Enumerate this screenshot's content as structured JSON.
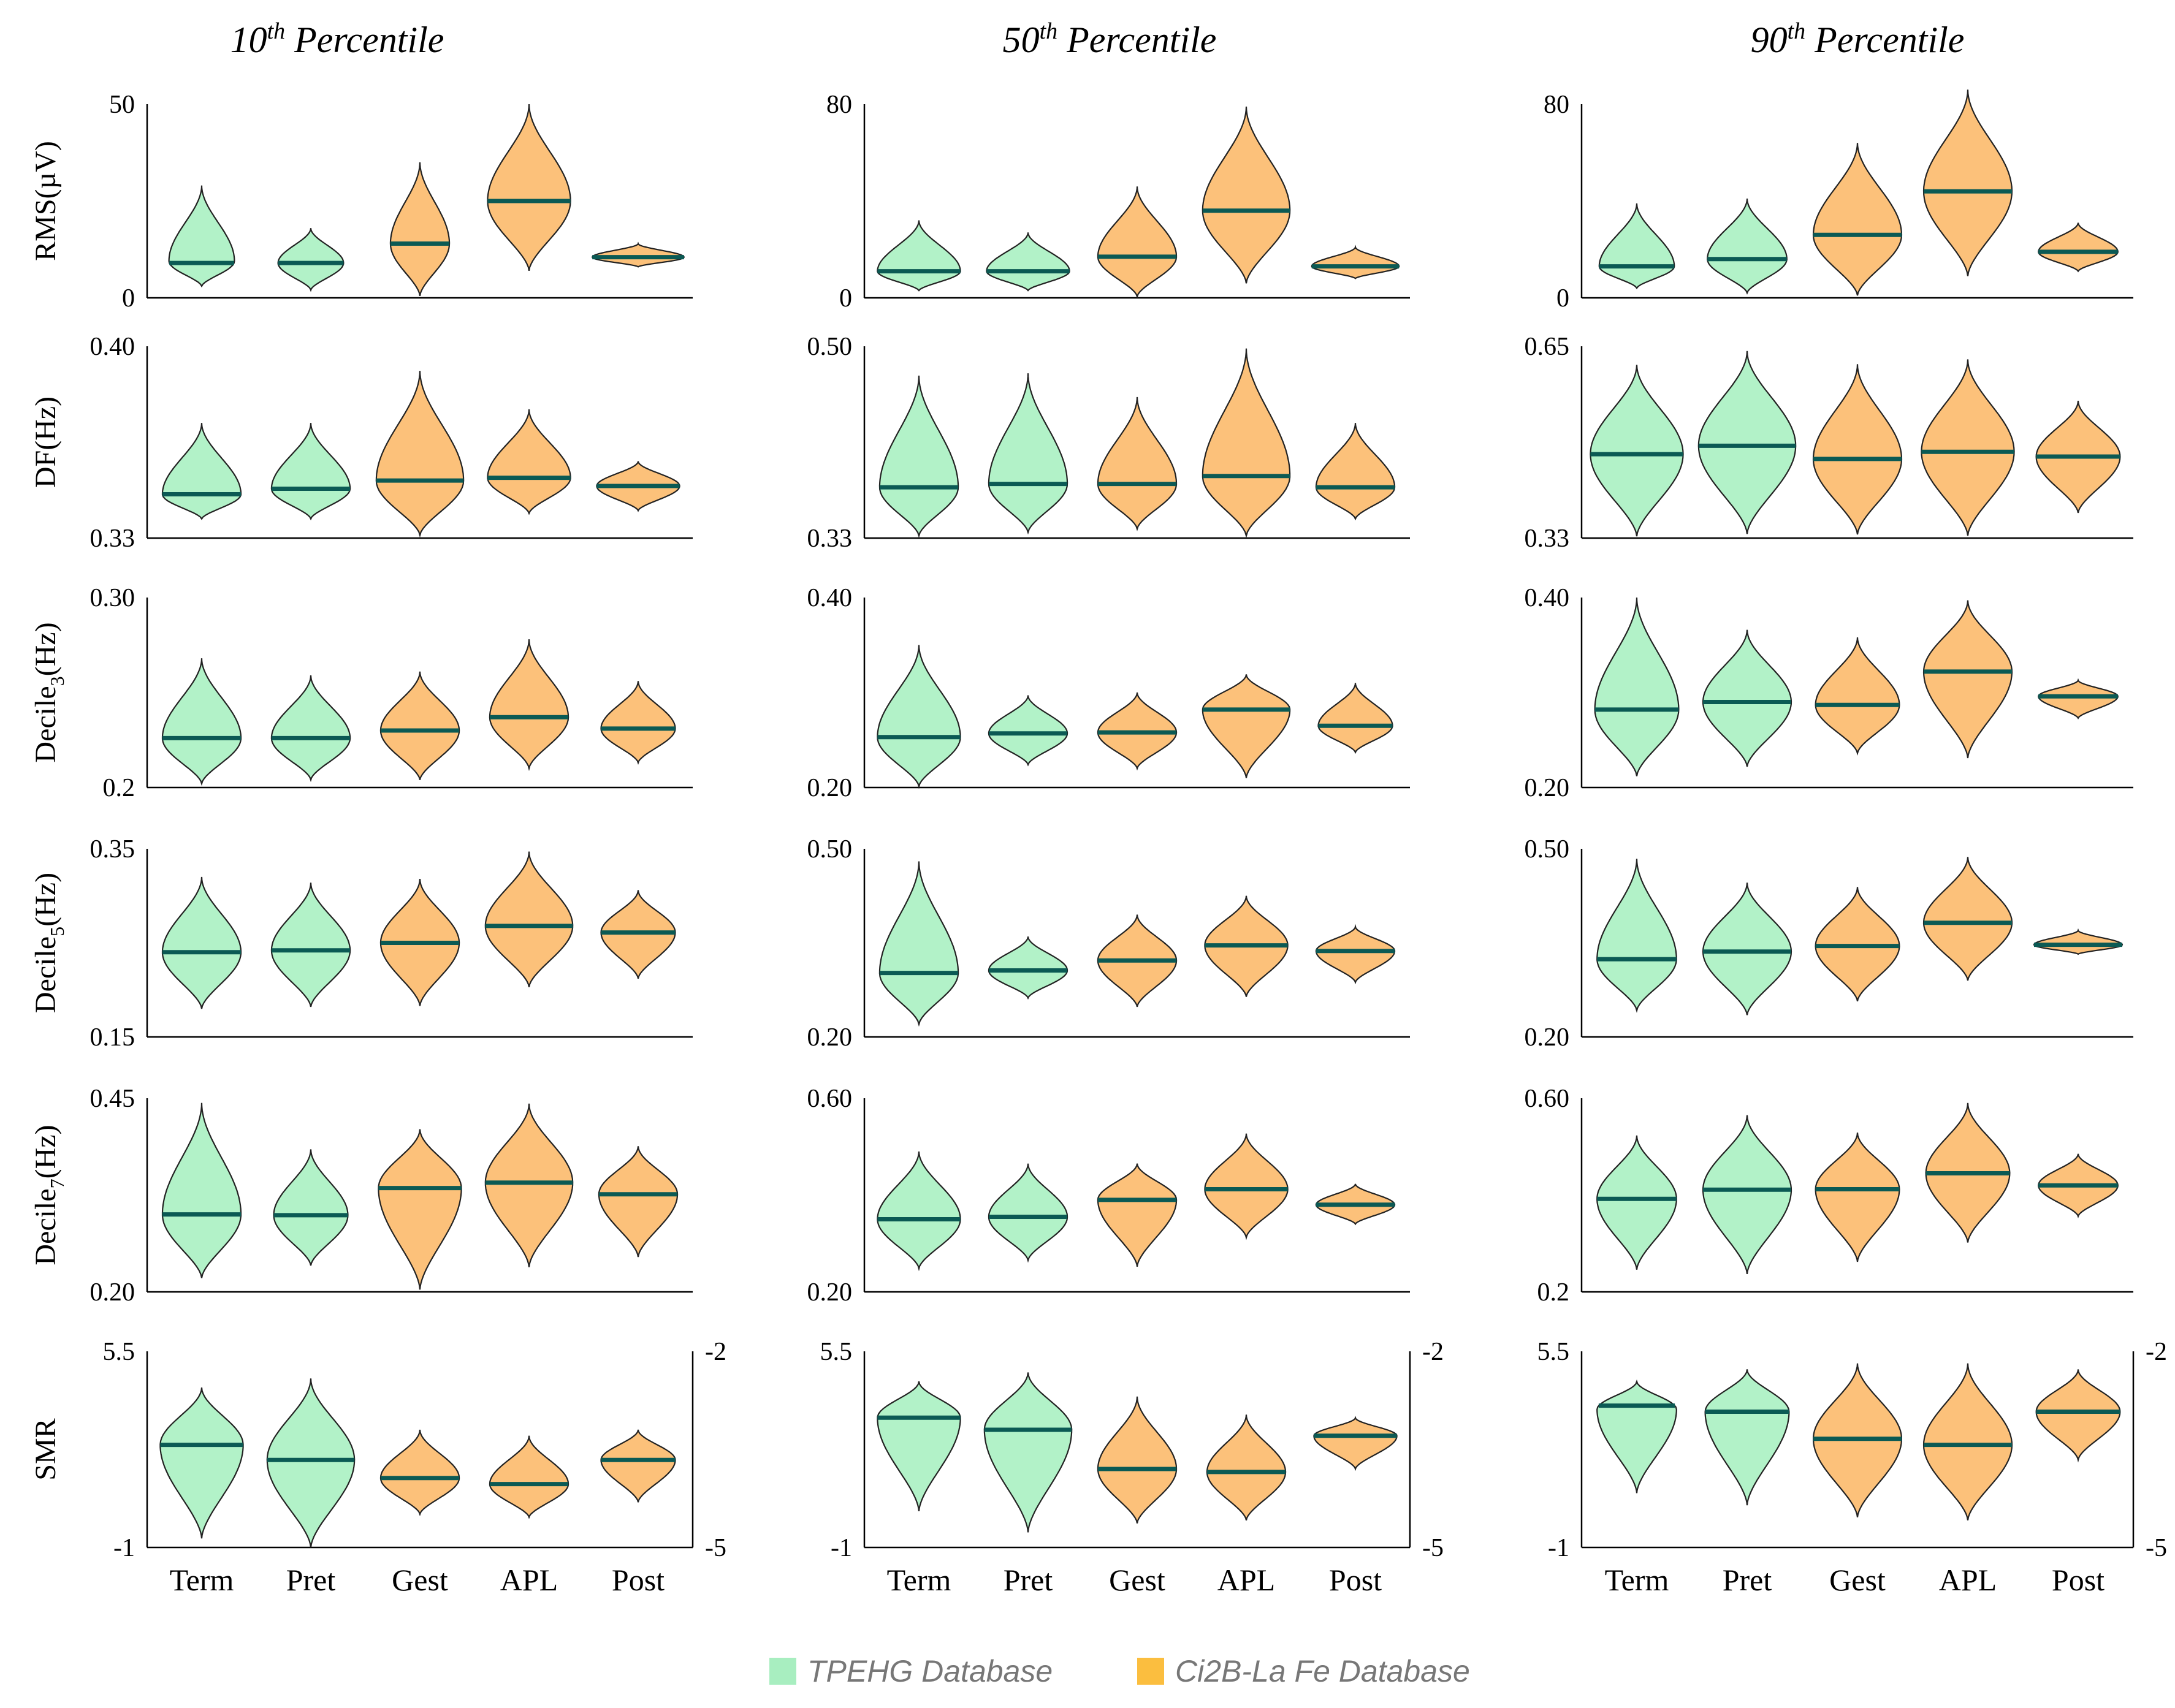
{
  "colors": {
    "tpehg": "#b2f2c8",
    "ci2b": "#fcc17a",
    "median": "#0b5a54",
    "legend_tpehg": "#a8eec0",
    "legend_ci2b": "#fbbe3f"
  },
  "chart_data": {
    "type": "violin",
    "categories": [
      "Term",
      "Pret",
      "Gest",
      "APL",
      "Post"
    ],
    "category_database": [
      "tpehg",
      "tpehg",
      "ci2b",
      "ci2b",
      "ci2b"
    ],
    "legend": [
      {
        "key": "tpehg",
        "label": "TPEHG Database"
      },
      {
        "key": "ci2b",
        "label": "Ci2B-La Fe Database"
      }
    ],
    "columns": [
      {
        "base": "10",
        "sup": "th",
        "rest": " Percentile"
      },
      {
        "base": "50",
        "sup": "th",
        "rest": " Percentile"
      },
      {
        "base": "90",
        "sup": "th",
        "rest": " Percentile"
      }
    ],
    "rows": [
      {
        "label": "RMS(µV)",
        "label_main": "RMS(",
        "label_sub": "",
        "label_end": "µV)"
      },
      {
        "label": "DF(Hz)",
        "label_main": "DF(Hz)",
        "label_sub": "",
        "label_end": ""
      },
      {
        "label": "Decile3(Hz)",
        "label_main": "Decile",
        "label_sub": "3",
        "label_end": "(Hz)"
      },
      {
        "label": "Decile5(Hz)",
        "label_main": "Decile",
        "label_sub": "5",
        "label_end": "(Hz)"
      },
      {
        "label": "Decile7(Hz)",
        "label_main": "Decile",
        "label_sub": "7",
        "label_end": "(Hz)"
      },
      {
        "label": "SMR",
        "label_main": "SMR",
        "label_sub": "",
        "label_end": ""
      }
    ],
    "panels": [
      [
        {
          "ylim": [
            0,
            50
          ],
          "ticks": [
            "50",
            "0"
          ],
          "violins": [
            {
              "min": 3,
              "max": 29,
              "median": 9,
              "width": 0.3
            },
            {
              "min": 2,
              "max": 18,
              "median": 9,
              "width": 0.3
            },
            {
              "min": 0.5,
              "max": 35,
              "median": 14,
              "width": 0.27
            },
            {
              "min": 7,
              "max": 50,
              "median": 25,
              "width": 0.38
            },
            {
              "min": 8,
              "max": 14,
              "median": 10.5,
              "width": 0.42
            }
          ]
        },
        {
          "ylim": [
            0.33,
            0.4
          ],
          "ticks": [
            "0.40",
            "0.33"
          ],
          "violins": [
            {
              "min": 0.337,
              "max": 0.372,
              "median": 0.346,
              "width": 0.36
            },
            {
              "min": 0.337,
              "max": 0.372,
              "median": 0.348,
              "width": 0.36
            },
            {
              "min": 0.331,
              "max": 0.391,
              "median": 0.351,
              "width": 0.4
            },
            {
              "min": 0.339,
              "max": 0.377,
              "median": 0.352,
              "width": 0.38
            },
            {
              "min": 0.34,
              "max": 0.358,
              "median": 0.349,
              "width": 0.38
            }
          ]
        },
        {
          "ylim": [
            0.2,
            0.3
          ],
          "ticks": [
            "0.30",
            "0.2"
          ],
          "violins": [
            {
              "min": 0.202,
              "max": 0.268,
              "median": 0.226,
              "width": 0.36
            },
            {
              "min": 0.204,
              "max": 0.259,
              "median": 0.226,
              "width": 0.36
            },
            {
              "min": 0.204,
              "max": 0.261,
              "median": 0.23,
              "width": 0.36
            },
            {
              "min": 0.21,
              "max": 0.278,
              "median": 0.237,
              "width": 0.36
            },
            {
              "min": 0.213,
              "max": 0.256,
              "median": 0.231,
              "width": 0.34
            }
          ]
        },
        {
          "ylim": [
            0.15,
            0.35
          ],
          "ticks": [
            "0.35",
            "0.15"
          ],
          "violins": [
            {
              "min": 0.18,
              "max": 0.32,
              "median": 0.24,
              "width": 0.36
            },
            {
              "min": 0.182,
              "max": 0.314,
              "median": 0.242,
              "width": 0.36
            },
            {
              "min": 0.183,
              "max": 0.318,
              "median": 0.25,
              "width": 0.36
            },
            {
              "min": 0.203,
              "max": 0.347,
              "median": 0.268,
              "width": 0.4
            },
            {
              "min": 0.212,
              "max": 0.306,
              "median": 0.261,
              "width": 0.34
            }
          ]
        },
        {
          "ylim": [
            0.2,
            0.45
          ],
          "ticks": [
            "0.45",
            "0.20"
          ],
          "violins": [
            {
              "min": 0.218,
              "max": 0.444,
              "median": 0.3,
              "width": 0.36
            },
            {
              "min": 0.234,
              "max": 0.384,
              "median": 0.299,
              "width": 0.34
            },
            {
              "min": 0.203,
              "max": 0.41,
              "median": 0.334,
              "width": 0.38
            },
            {
              "min": 0.232,
              "max": 0.443,
              "median": 0.341,
              "width": 0.4
            },
            {
              "min": 0.245,
              "max": 0.388,
              "median": 0.326,
              "width": 0.36
            }
          ]
        },
        {
          "ylim": [
            -1,
            5.5
          ],
          "ticks": [
            "5.5",
            "-1"
          ],
          "ylim_right": [
            -5,
            -2
          ],
          "ticks_right": [
            "-2",
            "-5"
          ],
          "violins": [
            {
              "min": -0.7,
              "max": 4.3,
              "median": 2.4,
              "width": 0.38
            },
            {
              "min": -1.0,
              "max": 4.6,
              "median": 1.9,
              "width": 0.4
            },
            {
              "min": 0.1,
              "max": 2.9,
              "median": 1.3,
              "width": 0.36
            },
            {
              "min": 0.0,
              "max": 2.7,
              "median": 1.1,
              "width": 0.36
            },
            {
              "min": 0.5,
              "max": 2.9,
              "median": 1.9,
              "width": 0.34
            }
          ]
        }
      ],
      [
        {
          "ylim": [
            0,
            80
          ],
          "ticks": [
            "80",
            "0"
          ],
          "violins": [
            {
              "min": 3,
              "max": 32,
              "median": 11,
              "width": 0.38
            },
            {
              "min": 3,
              "max": 27,
              "median": 11,
              "width": 0.38
            },
            {
              "min": 0.5,
              "max": 46,
              "median": 17,
              "width": 0.36
            },
            {
              "min": 6,
              "max": 79,
              "median": 36,
              "width": 0.4
            },
            {
              "min": 8,
              "max": 21,
              "median": 13,
              "width": 0.4
            }
          ]
        },
        {
          "ylim": [
            0.33,
            0.5
          ],
          "ticks": [
            "0.50",
            "0.33"
          ],
          "violins": [
            {
              "min": 0.332,
              "max": 0.474,
              "median": 0.375,
              "width": 0.36
            },
            {
              "min": 0.335,
              "max": 0.476,
              "median": 0.378,
              "width": 0.36
            },
            {
              "min": 0.338,
              "max": 0.455,
              "median": 0.378,
              "width": 0.36
            },
            {
              "min": 0.332,
              "max": 0.498,
              "median": 0.385,
              "width": 0.4
            },
            {
              "min": 0.347,
              "max": 0.432,
              "median": 0.375,
              "width": 0.36
            }
          ]
        },
        {
          "ylim": [
            0.2,
            0.4
          ],
          "ticks": [
            "0.40",
            "0.20"
          ],
          "violins": [
            {
              "min": 0.201,
              "max": 0.35,
              "median": 0.253,
              "width": 0.38
            },
            {
              "min": 0.224,
              "max": 0.297,
              "median": 0.257,
              "width": 0.36
            },
            {
              "min": 0.22,
              "max": 0.3,
              "median": 0.258,
              "width": 0.36
            },
            {
              "min": 0.21,
              "max": 0.319,
              "median": 0.282,
              "width": 0.4
            },
            {
              "min": 0.237,
              "max": 0.31,
              "median": 0.265,
              "width": 0.34
            }
          ]
        },
        {
          "ylim": [
            0.2,
            0.5
          ],
          "ticks": [
            "0.50",
            "0.20"
          ],
          "violins": [
            {
              "min": 0.22,
              "max": 0.48,
              "median": 0.302,
              "width": 0.36
            },
            {
              "min": 0.262,
              "max": 0.36,
              "median": 0.306,
              "width": 0.36
            },
            {
              "min": 0.248,
              "max": 0.395,
              "median": 0.322,
              "width": 0.36
            },
            {
              "min": 0.264,
              "max": 0.425,
              "median": 0.346,
              "width": 0.38
            },
            {
              "min": 0.287,
              "max": 0.376,
              "median": 0.337,
              "width": 0.36
            }
          ]
        },
        {
          "ylim": [
            0.2,
            0.6
          ],
          "ticks": [
            "0.60",
            "0.20"
          ],
          "violins": [
            {
              "min": 0.248,
              "max": 0.49,
              "median": 0.35,
              "width": 0.38
            },
            {
              "min": 0.265,
              "max": 0.465,
              "median": 0.355,
              "width": 0.36
            },
            {
              "min": 0.252,
              "max": 0.465,
              "median": 0.39,
              "width": 0.36
            },
            {
              "min": 0.312,
              "max": 0.527,
              "median": 0.412,
              "width": 0.38
            },
            {
              "min": 0.34,
              "max": 0.423,
              "median": 0.38,
              "width": 0.36
            }
          ]
        },
        {
          "ylim": [
            -1,
            5.5
          ],
          "ticks": [
            "5.5",
            "-1"
          ],
          "ylim_right": [
            -5,
            -2
          ],
          "ticks_right": [
            "-2",
            "-5"
          ],
          "violins": [
            {
              "min": 0.2,
              "max": 4.5,
              "median": 3.3,
              "width": 0.38
            },
            {
              "min": -0.5,
              "max": 4.8,
              "median": 2.9,
              "width": 0.4
            },
            {
              "min": -0.2,
              "max": 4.0,
              "median": 1.6,
              "width": 0.36
            },
            {
              "min": -0.1,
              "max": 3.4,
              "median": 1.5,
              "width": 0.36
            },
            {
              "min": 1.6,
              "max": 3.3,
              "median": 2.7,
              "width": 0.38
            }
          ]
        }
      ],
      [
        {
          "ylim": [
            0,
            80
          ],
          "ticks": [
            "80",
            "0"
          ],
          "violins": [
            {
              "min": 4,
              "max": 39,
              "median": 13,
              "width": 0.34
            },
            {
              "min": 2,
              "max": 41,
              "median": 16,
              "width": 0.36
            },
            {
              "min": 1,
              "max": 64,
              "median": 26,
              "width": 0.4
            },
            {
              "min": 9,
              "max": 86,
              "median": 44,
              "width": 0.4
            },
            {
              "min": 11,
              "max": 31,
              "median": 19,
              "width": 0.36
            }
          ]
        },
        {
          "ylim": [
            0.33,
            0.65
          ],
          "ticks": [
            "0.65",
            "0.33"
          ],
          "violins": [
            {
              "min": 0.333,
              "max": 0.619,
              "median": 0.47,
              "width": 0.42
            },
            {
              "min": 0.337,
              "max": 0.642,
              "median": 0.484,
              "width": 0.44
            },
            {
              "min": 0.336,
              "max": 0.62,
              "median": 0.462,
              "width": 0.4
            },
            {
              "min": 0.334,
              "max": 0.628,
              "median": 0.474,
              "width": 0.42
            },
            {
              "min": 0.372,
              "max": 0.559,
              "median": 0.466,
              "width": 0.38
            }
          ]
        },
        {
          "ylim": [
            0.2,
            0.4
          ],
          "ticks": [
            "0.40",
            "0.20"
          ],
          "violins": [
            {
              "min": 0.212,
              "max": 0.4,
              "median": 0.282,
              "width": 0.38
            },
            {
              "min": 0.222,
              "max": 0.366,
              "median": 0.29,
              "width": 0.4
            },
            {
              "min": 0.236,
              "max": 0.358,
              "median": 0.287,
              "width": 0.38
            },
            {
              "min": 0.231,
              "max": 0.397,
              "median": 0.322,
              "width": 0.4
            },
            {
              "min": 0.273,
              "max": 0.313,
              "median": 0.296,
              "width": 0.36
            }
          ]
        },
        {
          "ylim": [
            0.2,
            0.5
          ],
          "ticks": [
            "0.50",
            "0.20"
          ],
          "violins": [
            {
              "min": 0.242,
              "max": 0.484,
              "median": 0.324,
              "width": 0.36
            },
            {
              "min": 0.235,
              "max": 0.446,
              "median": 0.336,
              "width": 0.4
            },
            {
              "min": 0.257,
              "max": 0.439,
              "median": 0.345,
              "width": 0.38
            },
            {
              "min": 0.29,
              "max": 0.487,
              "median": 0.382,
              "width": 0.4
            },
            {
              "min": 0.332,
              "max": 0.37,
              "median": 0.347,
              "width": 0.4
            }
          ]
        },
        {
          "ylim": [
            0.2,
            0.6
          ],
          "ticks": [
            "0.60",
            "0.2"
          ],
          "violins": [
            {
              "min": 0.246,
              "max": 0.523,
              "median": 0.392,
              "width": 0.36
            },
            {
              "min": 0.237,
              "max": 0.565,
              "median": 0.411,
              "width": 0.4
            },
            {
              "min": 0.262,
              "max": 0.529,
              "median": 0.412,
              "width": 0.38
            },
            {
              "min": 0.302,
              "max": 0.59,
              "median": 0.445,
              "width": 0.38
            },
            {
              "min": 0.356,
              "max": 0.485,
              "median": 0.42,
              "width": 0.36
            }
          ]
        },
        {
          "ylim": [
            -1,
            5.5
          ],
          "ticks": [
            "5.5",
            "-1"
          ],
          "ylim_right": [
            -5,
            -2
          ],
          "ticks_right": [
            "-2",
            "-5"
          ],
          "violins": [
            {
              "min": 0.8,
              "max": 4.5,
              "median": 3.7,
              "width": 0.36
            },
            {
              "min": 0.4,
              "max": 4.9,
              "median": 3.5,
              "width": 0.38
            },
            {
              "min": 0.0,
              "max": 5.1,
              "median": 2.6,
              "width": 0.4
            },
            {
              "min": -0.1,
              "max": 5.1,
              "median": 2.4,
              "width": 0.4
            },
            {
              "min": 1.9,
              "max": 4.9,
              "median": 3.5,
              "width": 0.38
            }
          ]
        }
      ]
    ]
  }
}
